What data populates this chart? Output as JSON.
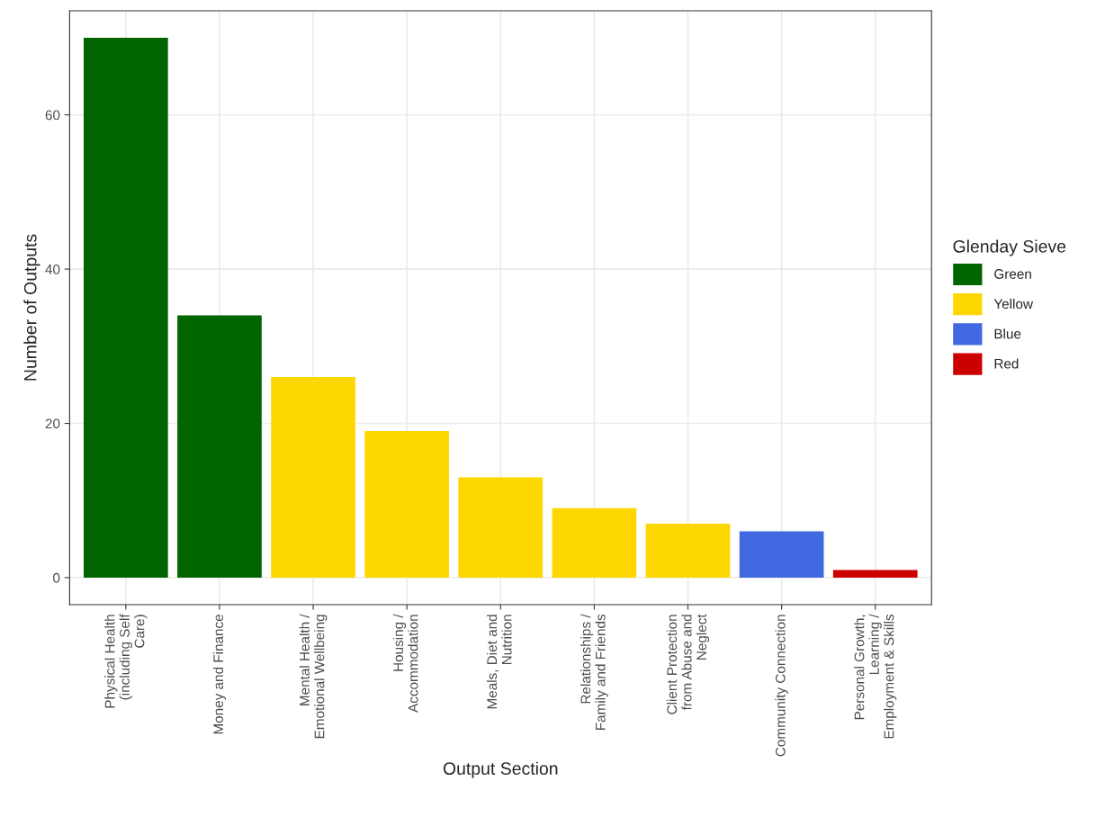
{
  "chart_data": {
    "type": "bar",
    "xlabel": "Output Section",
    "ylabel": "Number of Outputs",
    "legend_title": "Glenday Sieve",
    "categories": [
      "Physical Health\n(including Self\nCare)",
      "Money and Finance",
      "Mental Health /\nEmotional Wellbeing",
      "Housing /\nAccommodation",
      "Meals, Diet and\nNutrition",
      "Relationships /\nFamily and Friends",
      "Client Protection\nfrom Abuse and\nNeglect",
      "Community Connection",
      "Personal Growth,\nLearning /\nEmployment & Skills"
    ],
    "series": [
      {
        "name": "Green",
        "color": "#006400",
        "values": [
          70,
          34,
          null,
          null,
          null,
          null,
          null,
          null,
          null
        ]
      },
      {
        "name": "Yellow",
        "color": "#ffd700",
        "values": [
          null,
          null,
          26,
          19,
          13,
          9,
          7,
          null,
          null
        ]
      },
      {
        "name": "Blue",
        "color": "#4169e1",
        "values": [
          null,
          null,
          null,
          null,
          null,
          null,
          null,
          6,
          null
        ]
      },
      {
        "name": "Red",
        "color": "#cd0000",
        "values": [
          null,
          null,
          null,
          null,
          null,
          null,
          null,
          null,
          1
        ]
      }
    ],
    "ylim": [
      -3.5,
      73.5
    ],
    "yticks": [
      0,
      20,
      40,
      60
    ],
    "grid": true,
    "legend": "right"
  }
}
